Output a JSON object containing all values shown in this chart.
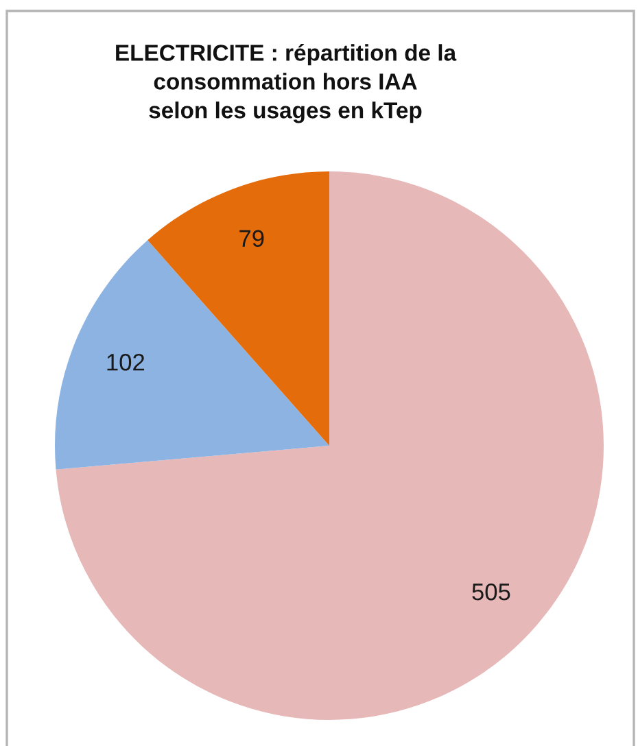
{
  "chart_data": {
    "type": "pie",
    "title": "ELECTRICITE : répartition de la\nconsommation hors IAA\nselon les usages en kTep",
    "categories": [
      null,
      null,
      null
    ],
    "values": [
      505,
      102,
      79
    ],
    "colors": [
      "#e6b8b7",
      "#8db3e2",
      "#e46c0a"
    ],
    "data_labels": true
  }
}
